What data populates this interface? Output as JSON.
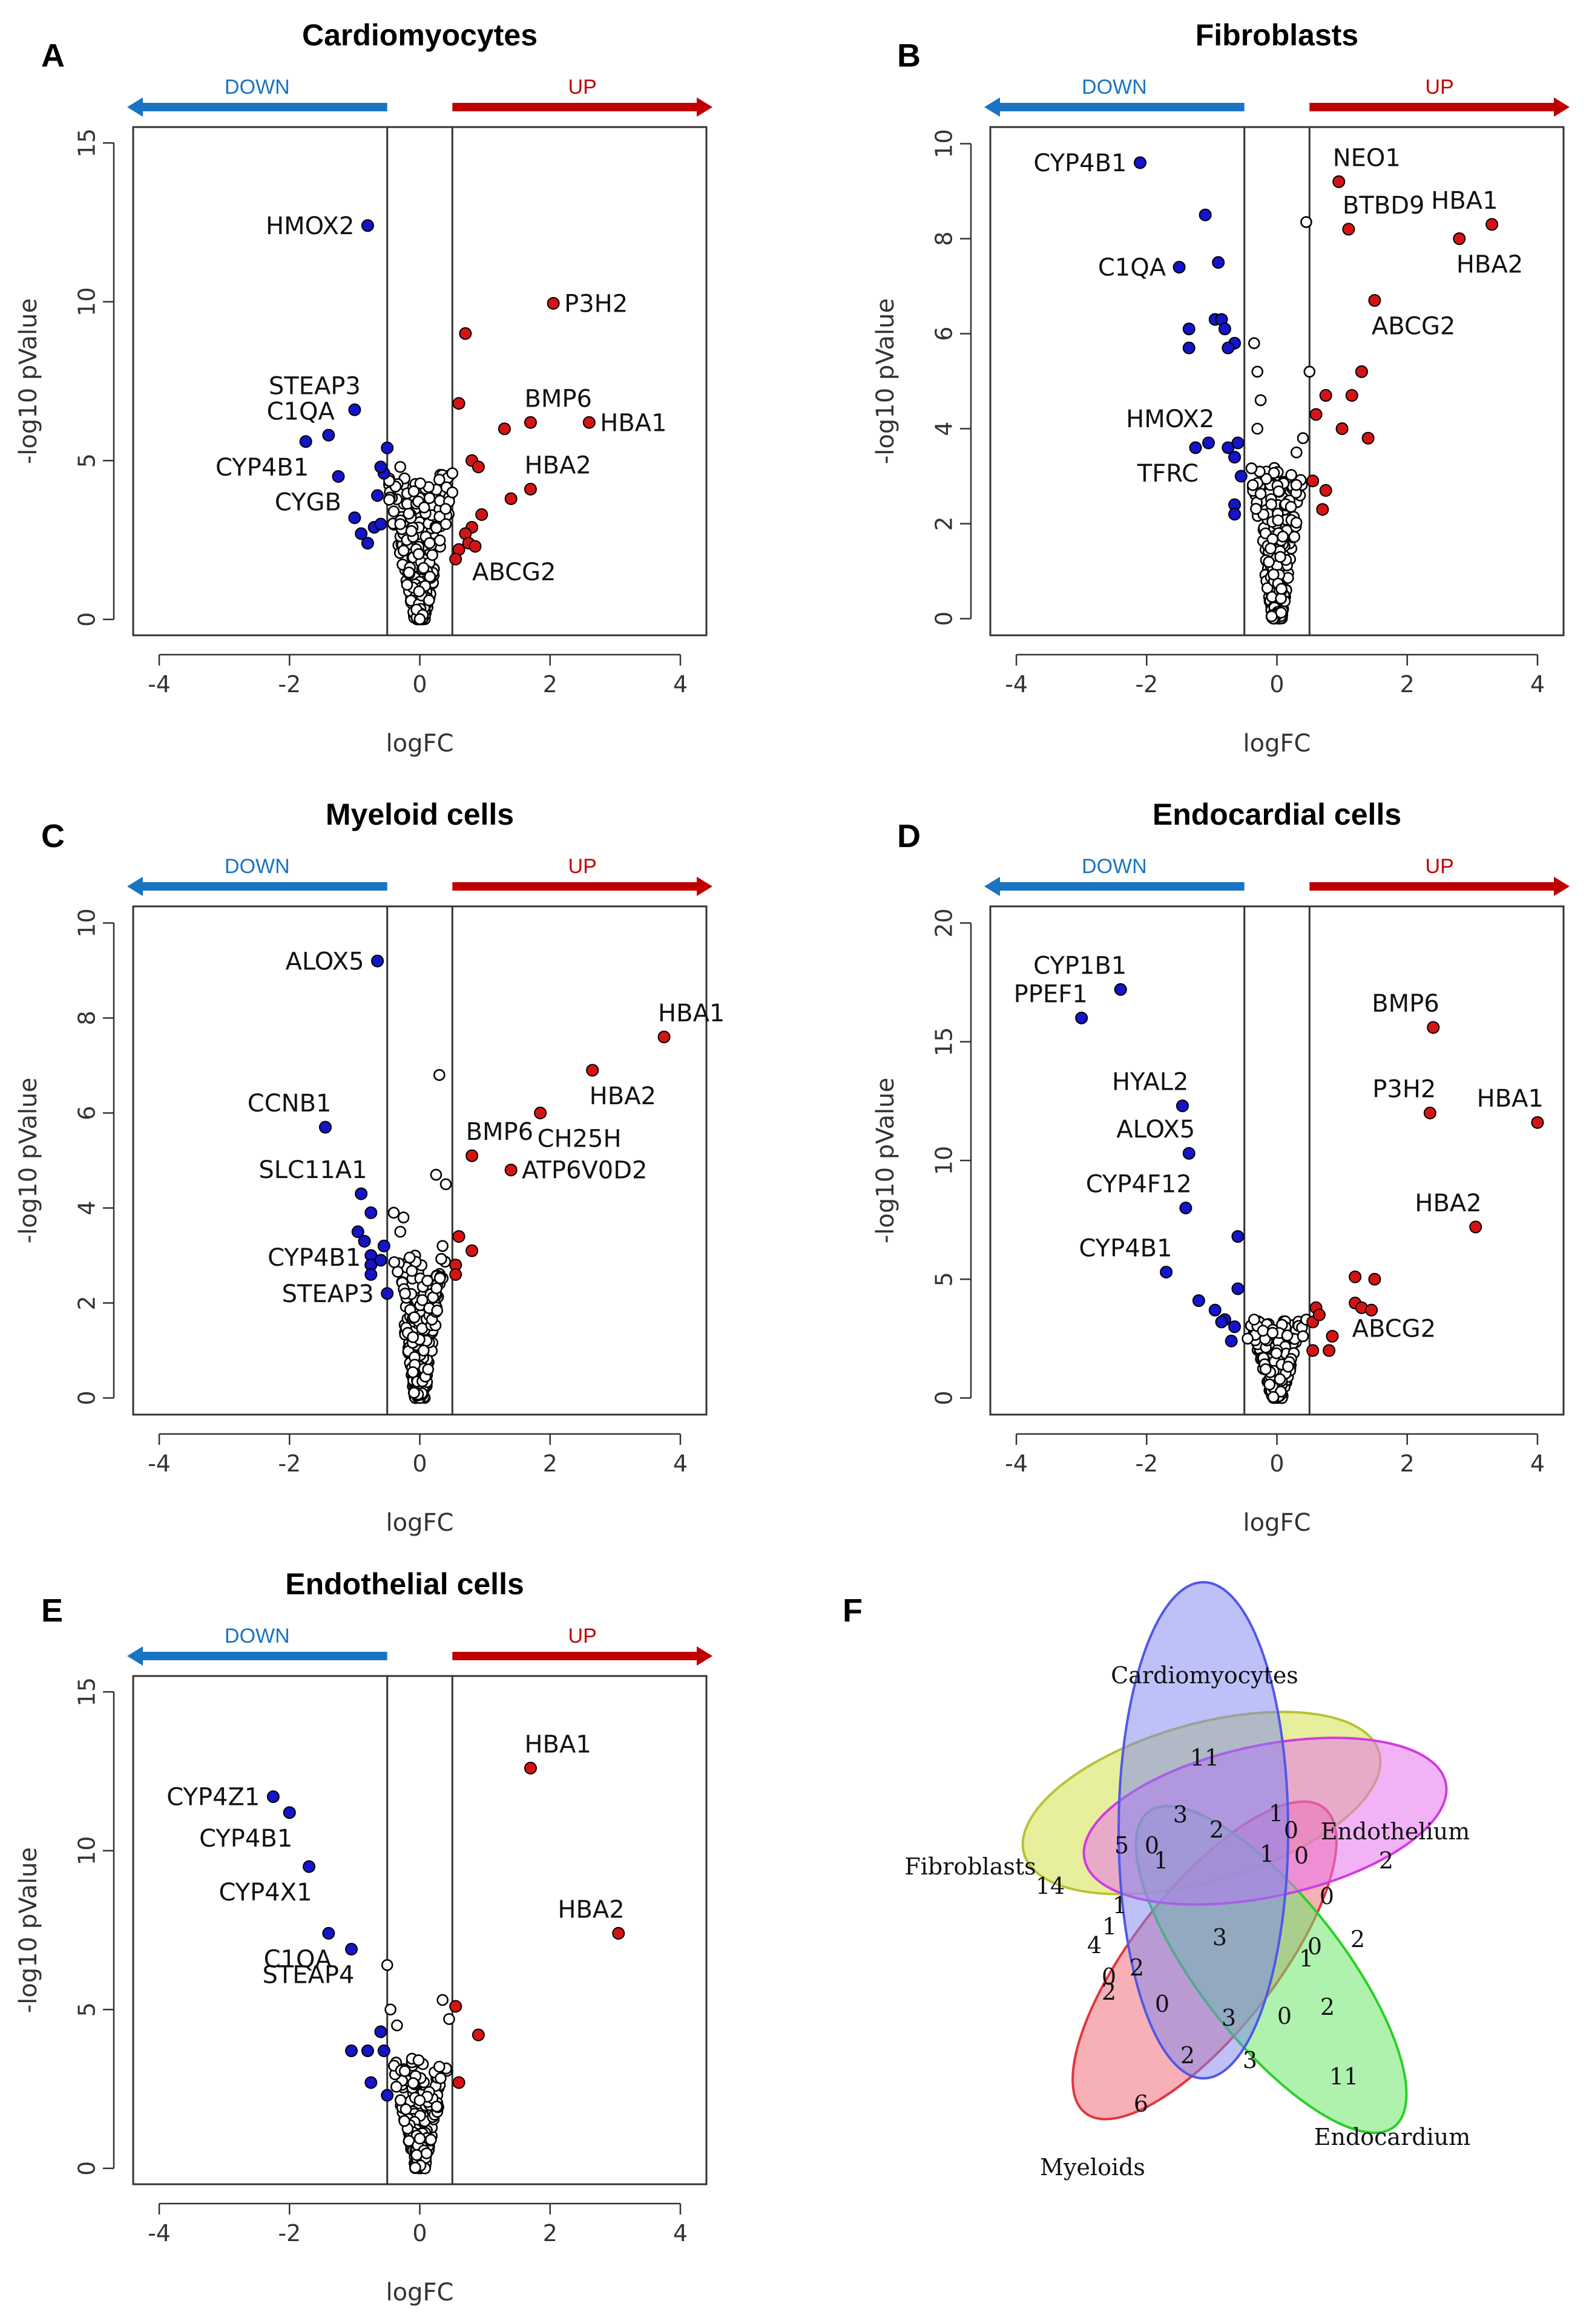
{
  "chart_data": [
    {
      "type": "scatter",
      "panel": "A",
      "title": "Cardiomyocytes",
      "xlabel": "logFC",
      "ylabel": "-log10 pValue",
      "xlim": [
        -4.4,
        4.4
      ],
      "ylim": [
        -0.5,
        15.5
      ],
      "xticks": [
        "-4",
        "-2",
        "0",
        "2",
        "4"
      ],
      "xtick_values": [
        -4,
        -2,
        0,
        2,
        4
      ],
      "yticks": [
        "0",
        "5",
        "10",
        "15"
      ],
      "ytick_values": [
        0,
        5,
        10,
        15
      ],
      "threshold": 0.5,
      "down_label": "DOWN",
      "up_label": "UP",
      "down": [
        [
          -0.8,
          12.4
        ],
        [
          -1.0,
          6.6
        ],
        [
          -1.4,
          5.8
        ],
        [
          -1.75,
          5.6
        ],
        [
          -1.25,
          4.5
        ],
        [
          -1.0,
          3.2
        ],
        [
          -0.8,
          2.4
        ],
        [
          -0.7,
          2.9
        ],
        [
          -0.6,
          3.0
        ],
        [
          -0.5,
          5.4
        ],
        [
          -0.55,
          4.6
        ],
        [
          -0.6,
          4.8
        ],
        [
          -0.65,
          3.9
        ],
        [
          -0.9,
          2.7
        ]
      ],
      "up": [
        [
          2.05,
          9.95
        ],
        [
          0.7,
          9.0
        ],
        [
          0.6,
          6.8
        ],
        [
          1.3,
          6.0
        ],
        [
          1.7,
          6.2
        ],
        [
          2.6,
          6.2
        ],
        [
          0.8,
          5.0
        ],
        [
          0.9,
          4.8
        ],
        [
          1.7,
          4.1
        ],
        [
          1.4,
          3.8
        ],
        [
          0.95,
          3.3
        ],
        [
          0.8,
          2.9
        ],
        [
          0.7,
          2.7
        ],
        [
          0.75,
          2.4
        ],
        [
          0.6,
          2.2
        ],
        [
          0.85,
          2.3
        ],
        [
          0.55,
          1.9
        ]
      ],
      "ns_shape": "volcano",
      "ns_count": 260,
      "ns_maxy": 4.6,
      "ns_extra": [
        [
          0.5,
          4.6
        ],
        [
          0.3,
          4.4
        ],
        [
          0.5,
          4.0
        ],
        [
          -0.3,
          4.8
        ],
        [
          -0.4,
          3.4
        ],
        [
          0.4,
          3.0
        ],
        [
          -0.3,
          3.0
        ]
      ],
      "labels": [
        {
          "text": "HMOX2",
          "x": -0.8,
          "y": 12.4,
          "pos": "left"
        },
        {
          "text": "P3H2",
          "x": 2.05,
          "y": 9.95,
          "pos": "right"
        },
        {
          "text": "STEAP3",
          "x": -1.0,
          "y": 6.6,
          "pos": "upleft"
        },
        {
          "text": "C1QA",
          "x": -1.4,
          "y": 5.8,
          "pos": "upleft"
        },
        {
          "text": "BMP6",
          "x": 1.7,
          "y": 6.2,
          "pos": "upright"
        },
        {
          "text": "HBA1",
          "x": 2.6,
          "y": 6.2,
          "pos": "right"
        },
        {
          "text": "CYP4B1",
          "x": -1.75,
          "y": 5.6,
          "pos": "downleft"
        },
        {
          "text": "HBA2",
          "x": 1.7,
          "y": 4.1,
          "pos": "upright"
        },
        {
          "text": "CYGB",
          "x": -1.25,
          "y": 4.5,
          "pos": "downleft"
        },
        {
          "text": "ABCG2",
          "x": 0.85,
          "y": 2.3,
          "pos": "downright"
        }
      ]
    },
    {
      "type": "scatter",
      "panel": "B",
      "title": "Fibroblasts",
      "xlabel": "logFC",
      "ylabel": "-log10 pValue",
      "xlim": [
        -4.4,
        4.4
      ],
      "ylim": [
        -0.35,
        10.35
      ],
      "xticks": [
        "-4",
        "-2",
        "0",
        "2",
        "4"
      ],
      "xtick_values": [
        -4,
        -2,
        0,
        2,
        4
      ],
      "yticks": [
        "0",
        "2",
        "4",
        "6",
        "8",
        "10"
      ],
      "ytick_values": [
        0,
        2,
        4,
        6,
        8,
        10
      ],
      "threshold": 0.5,
      "down_label": "DOWN",
      "up_label": "UP",
      "down": [
        [
          -2.1,
          9.6
        ],
        [
          -1.1,
          8.5
        ],
        [
          -0.9,
          7.5
        ],
        [
          -1.5,
          7.4
        ],
        [
          -0.95,
          6.3
        ],
        [
          -0.85,
          6.3
        ],
        [
          -1.35,
          6.1
        ],
        [
          -1.35,
          5.7
        ],
        [
          -0.8,
          6.1
        ],
        [
          -0.65,
          5.8
        ],
        [
          -0.75,
          5.7
        ],
        [
          -1.25,
          3.6
        ],
        [
          -1.05,
          3.7
        ],
        [
          -0.75,
          3.6
        ],
        [
          -0.65,
          3.4
        ],
        [
          -0.65,
          2.4
        ],
        [
          -0.65,
          2.2
        ],
        [
          -0.55,
          3.0
        ],
        [
          -0.6,
          3.7
        ]
      ],
      "up": [
        [
          0.95,
          9.2
        ],
        [
          1.1,
          8.2
        ],
        [
          2.8,
          8.0
        ],
        [
          3.3,
          8.3
        ],
        [
          1.5,
          6.7
        ],
        [
          1.3,
          5.2
        ],
        [
          0.75,
          4.7
        ],
        [
          1.15,
          4.7
        ],
        [
          0.6,
          4.3
        ],
        [
          1.0,
          4.0
        ],
        [
          1.4,
          3.8
        ],
        [
          0.55,
          2.9
        ],
        [
          0.75,
          2.7
        ],
        [
          0.7,
          2.3
        ]
      ],
      "ns_shape": "volcano",
      "ns_count": 260,
      "ns_maxy": 3.2,
      "ns_extra": [
        [
          0.45,
          8.35
        ],
        [
          0.5,
          5.2
        ],
        [
          -0.35,
          5.8
        ],
        [
          -0.3,
          5.2
        ],
        [
          -0.25,
          4.6
        ],
        [
          0.4,
          3.8
        ],
        [
          -0.3,
          4.0
        ],
        [
          0.3,
          3.5
        ]
      ],
      "labels": [
        {
          "text": "CYP4B1",
          "x": -2.1,
          "y": 9.6,
          "pos": "left"
        },
        {
          "text": "NEO1",
          "x": 0.95,
          "y": 9.2,
          "pos": "upright"
        },
        {
          "text": "BTBD9",
          "x": 1.1,
          "y": 8.2,
          "pos": "upright"
        },
        {
          "text": "HBA1",
          "x": 3.3,
          "y": 8.3,
          "pos": "upleft"
        },
        {
          "text": "HBA2",
          "x": 2.8,
          "y": 8.0,
          "pos": "downright"
        },
        {
          "text": "C1QA",
          "x": -1.5,
          "y": 7.4,
          "pos": "left"
        },
        {
          "text": "ABCG2",
          "x": 1.5,
          "y": 6.7,
          "pos": "downright"
        },
        {
          "text": "HMOX2",
          "x": -1.05,
          "y": 3.7,
          "pos": "upleft"
        },
        {
          "text": "TFRC",
          "x": -1.25,
          "y": 3.6,
          "pos": "downleft"
        }
      ]
    },
    {
      "type": "scatter",
      "panel": "C",
      "title": "Myeloid cells",
      "xlabel": "logFC",
      "ylabel": "-log10 pValue",
      "xlim": [
        -4.4,
        4.4
      ],
      "ylim": [
        -0.35,
        10.35
      ],
      "xticks": [
        "-4",
        "-2",
        "0",
        "2",
        "4"
      ],
      "xtick_values": [
        -4,
        -2,
        0,
        2,
        4
      ],
      "yticks": [
        "0",
        "2",
        "4",
        "6",
        "8",
        "10"
      ],
      "ytick_values": [
        0,
        2,
        4,
        6,
        8,
        10
      ],
      "threshold": 0.5,
      "down_label": "DOWN",
      "up_label": "UP",
      "down": [
        [
          -0.65,
          9.2
        ],
        [
          -1.45,
          5.7
        ],
        [
          -0.9,
          4.3
        ],
        [
          -0.75,
          3.9
        ],
        [
          -0.95,
          3.5
        ],
        [
          -0.85,
          3.3
        ],
        [
          -0.75,
          3.0
        ],
        [
          -0.75,
          2.8
        ],
        [
          -0.55,
          3.2
        ],
        [
          -0.6,
          2.9
        ],
        [
          -0.75,
          2.6
        ],
        [
          -0.5,
          2.2
        ]
      ],
      "up": [
        [
          3.75,
          7.6
        ],
        [
          2.65,
          6.9
        ],
        [
          1.85,
          6.0
        ],
        [
          0.8,
          5.1
        ],
        [
          1.4,
          4.8
        ],
        [
          0.6,
          3.4
        ],
        [
          0.8,
          3.1
        ],
        [
          0.55,
          2.8
        ],
        [
          0.55,
          2.6
        ]
      ],
      "ns_shape": "volcano",
      "ns_count": 250,
      "ns_maxy": 3.0,
      "ns_extra": [
        [
          0.3,
          6.8
        ],
        [
          0.25,
          4.7
        ],
        [
          0.4,
          4.5
        ],
        [
          -0.4,
          3.9
        ],
        [
          -0.25,
          3.8
        ],
        [
          0.35,
          3.2
        ],
        [
          -0.3,
          3.5
        ]
      ],
      "labels": [
        {
          "text": "ALOX5",
          "x": -0.65,
          "y": 9.2,
          "pos": "left"
        },
        {
          "text": "HBA1",
          "x": 3.75,
          "y": 7.6,
          "pos": "upright"
        },
        {
          "text": "HBA2",
          "x": 2.65,
          "y": 6.9,
          "pos": "downright"
        },
        {
          "text": "CH25H",
          "x": 1.85,
          "y": 6.0,
          "pos": "downright"
        },
        {
          "text": "CCNB1",
          "x": -1.45,
          "y": 5.7,
          "pos": "upleft"
        },
        {
          "text": "BMP6",
          "x": 0.8,
          "y": 5.1,
          "pos": "upright"
        },
        {
          "text": "ATP6V0D2",
          "x": 1.4,
          "y": 4.8,
          "pos": "right"
        },
        {
          "text": "SLC11A1",
          "x": -0.9,
          "y": 4.3,
          "pos": "upleft"
        },
        {
          "text": "CYP4B1",
          "x": -0.95,
          "y": 3.5,
          "pos": "downleft"
        },
        {
          "text": "STEAP3",
          "x": -0.5,
          "y": 2.2,
          "pos": "left"
        }
      ]
    },
    {
      "type": "scatter",
      "panel": "D",
      "title": "Endocardial cells",
      "xlabel": "logFC",
      "ylabel": "-log10 pValue",
      "xlim": [
        -4.4,
        4.4
      ],
      "ylim": [
        -0.7,
        20.7
      ],
      "xticks": [
        "-4",
        "-2",
        "0",
        "2",
        "4"
      ],
      "xtick_values": [
        -4,
        -2,
        0,
        2,
        4
      ],
      "yticks": [
        "0",
        "5",
        "10",
        "15",
        "20"
      ],
      "ytick_values": [
        0,
        5,
        10,
        15,
        20
      ],
      "threshold": 0.5,
      "down_label": "DOWN",
      "up_label": "UP",
      "down": [
        [
          -2.4,
          17.2
        ],
        [
          -3.0,
          16.0
        ],
        [
          -1.45,
          12.3
        ],
        [
          -1.35,
          10.3
        ],
        [
          -1.4,
          8.0
        ],
        [
          -1.7,
          5.3
        ],
        [
          -0.6,
          6.8
        ],
        [
          -1.2,
          4.1
        ],
        [
          -0.6,
          4.6
        ],
        [
          -0.95,
          3.7
        ],
        [
          -0.8,
          3.3
        ],
        [
          -0.65,
          3.0
        ],
        [
          -0.7,
          2.4
        ],
        [
          -0.85,
          3.2
        ]
      ],
      "up": [
        [
          2.4,
          15.6
        ],
        [
          2.35,
          12.0
        ],
        [
          4.0,
          11.6
        ],
        [
          3.05,
          7.2
        ],
        [
          1.2,
          5.1
        ],
        [
          1.5,
          5.0
        ],
        [
          1.2,
          4.0
        ],
        [
          1.3,
          3.8
        ],
        [
          1.45,
          3.7
        ],
        [
          0.6,
          3.8
        ],
        [
          0.55,
          3.2
        ],
        [
          0.65,
          3.5
        ],
        [
          0.85,
          2.6
        ],
        [
          0.55,
          2.0
        ],
        [
          0.8,
          2.0
        ]
      ],
      "ns_shape": "volcano",
      "ns_count": 260,
      "ns_maxy": 3.3,
      "ns_extra": [
        [
          0.45,
          3.3
        ],
        [
          -0.35,
          3.3
        ],
        [
          0.4,
          2.6
        ],
        [
          -0.45,
          2.5
        ]
      ],
      "labels": [
        {
          "text": "CYP1B1",
          "x": -2.4,
          "y": 17.2,
          "pos": "upleft"
        },
        {
          "text": "PPEF1",
          "x": -3.0,
          "y": 16.0,
          "pos": "upleft"
        },
        {
          "text": "BMP6",
          "x": 2.4,
          "y": 15.6,
          "pos": "upleft"
        },
        {
          "text": "HYAL2",
          "x": -1.45,
          "y": 12.3,
          "pos": "upleft"
        },
        {
          "text": "P3H2",
          "x": 2.35,
          "y": 12.0,
          "pos": "upleft"
        },
        {
          "text": "HBA1",
          "x": 4.0,
          "y": 11.6,
          "pos": "upleft"
        },
        {
          "text": "ALOX5",
          "x": -1.35,
          "y": 10.3,
          "pos": "upleft"
        },
        {
          "text": "CYP4F12",
          "x": -1.4,
          "y": 8.0,
          "pos": "upleft"
        },
        {
          "text": "HBA2",
          "x": 3.05,
          "y": 7.2,
          "pos": "upleft"
        },
        {
          "text": "CYP4B1",
          "x": -1.7,
          "y": 5.3,
          "pos": "upleft"
        },
        {
          "text": "ABCG2",
          "x": 1.2,
          "y": 4.0,
          "pos": "downright"
        }
      ]
    },
    {
      "type": "scatter",
      "panel": "E",
      "title": "Endothelial cells",
      "xlabel": "logFC",
      "ylabel": "-log10 pValue",
      "xlim": [
        -4.4,
        4.4
      ],
      "ylim": [
        -0.5,
        15.5
      ],
      "xticks": [
        "-4",
        "-2",
        "0",
        "2",
        "4"
      ],
      "xtick_values": [
        -4,
        -2,
        0,
        2,
        4
      ],
      "yticks": [
        "0",
        "5",
        "10",
        "15"
      ],
      "ytick_values": [
        0,
        5,
        10,
        15
      ],
      "threshold": 0.5,
      "down_label": "DOWN",
      "up_label": "UP",
      "down": [
        [
          -2.25,
          11.7
        ],
        [
          -2.0,
          11.2
        ],
        [
          -1.7,
          9.5
        ],
        [
          -1.4,
          7.4
        ],
        [
          -1.05,
          6.9
        ],
        [
          -1.05,
          3.7
        ],
        [
          -0.8,
          3.7
        ],
        [
          -0.55,
          3.7
        ],
        [
          -0.6,
          4.3
        ],
        [
          -0.75,
          2.7
        ],
        [
          -0.5,
          2.3
        ]
      ],
      "up": [
        [
          1.7,
          12.6
        ],
        [
          3.05,
          7.4
        ],
        [
          0.55,
          5.1
        ],
        [
          0.9,
          4.2
        ],
        [
          0.6,
          2.7
        ]
      ],
      "ns_shape": "volcano",
      "ns_count": 240,
      "ns_maxy": 3.5,
      "ns_extra": [
        [
          -0.5,
          6.4
        ],
        [
          0.35,
          5.3
        ],
        [
          -0.45,
          5.0
        ],
        [
          0.45,
          4.7
        ],
        [
          -0.35,
          4.5
        ],
        [
          0.3,
          3.2
        ]
      ],
      "labels": [
        {
          "text": "HBA1",
          "x": 1.7,
          "y": 12.6,
          "pos": "upright"
        },
        {
          "text": "CYP4Z1",
          "x": -2.25,
          "y": 11.7,
          "pos": "left"
        },
        {
          "text": "CYP4B1",
          "x": -2.0,
          "y": 11.2,
          "pos": "downleft"
        },
        {
          "text": "CYP4X1",
          "x": -1.7,
          "y": 9.5,
          "pos": "downleft"
        },
        {
          "text": "HBA2",
          "x": 3.05,
          "y": 7.4,
          "pos": "upleft"
        },
        {
          "text": "C1QA",
          "x": -1.4,
          "y": 7.4,
          "pos": "downleft"
        },
        {
          "text": "STEAP4",
          "x": -1.05,
          "y": 6.9,
          "pos": "downleft"
        }
      ]
    }
  ],
  "venn": {
    "panel": "F",
    "type": "venn",
    "sets": [
      {
        "name": "Cardiomyocytes",
        "color": "#7b84f2"
      },
      {
        "name": "Endothelium",
        "color": "#e875ef"
      },
      {
        "name": "Endocardium",
        "color": "#6be86b"
      },
      {
        "name": "Myeloids",
        "color": "#f06f79"
      },
      {
        "name": "Fibroblasts",
        "color": "#d4e04a"
      }
    ],
    "counts": [
      "11",
      "14",
      "2",
      "11",
      "6",
      "3",
      "1",
      "5",
      "0",
      "2",
      "1",
      "0",
      "1",
      "1",
      "0",
      "0",
      "0",
      "2",
      "4",
      "1",
      "0",
      "2",
      "2",
      "3",
      "1",
      "0",
      "2",
      "3",
      "0",
      "3",
      "2"
    ]
  }
}
